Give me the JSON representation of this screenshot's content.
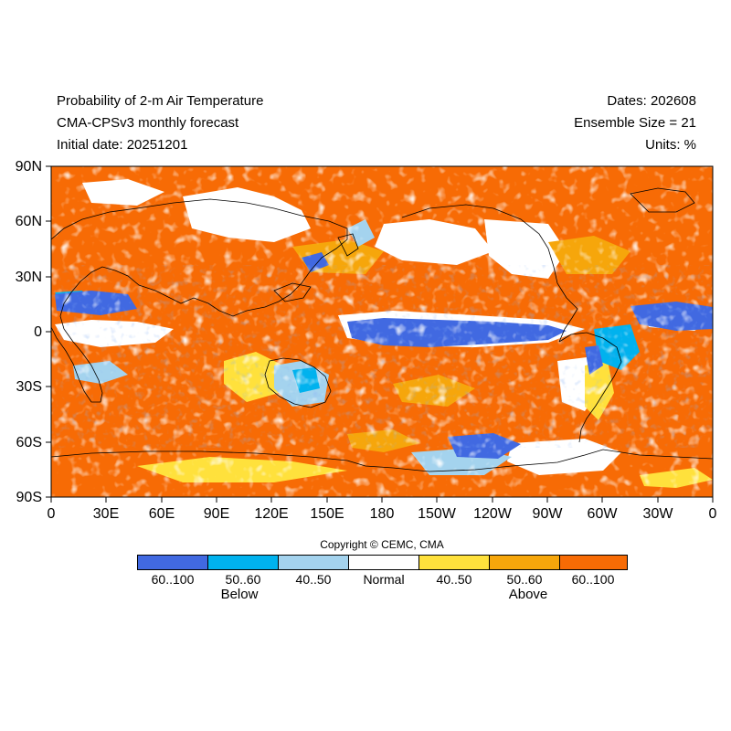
{
  "header": {
    "title": "Probability of 2-m Air Temperature",
    "model": "CMA-CPSv3 monthly forecast",
    "initial_date": "Initial date: 20251201",
    "dates": "Dates: 202608",
    "ensemble": "Ensemble Size = 21",
    "units": "Units: %"
  },
  "map": {
    "projection": "cylindrical equidistant",
    "lon_range": [
      0,
      360
    ],
    "lat_range": [
      -90,
      90
    ],
    "y_axis_labels": [
      "90N",
      "60N",
      "30N",
      "0",
      "30S",
      "60S",
      "90S"
    ],
    "x_axis_labels": [
      "0",
      "30E",
      "60E",
      "90E",
      "120E",
      "150E",
      "180",
      "150W",
      "120W",
      "90W",
      "60W",
      "30W",
      "0"
    ],
    "dominant_category": "Above 60..100",
    "below_normal_regions": [
      "central and eastern equatorial Pacific",
      "tropical eastern Atlantic",
      "western Indian Ocean",
      "Southern Ocean south of the Pacific",
      "interior Australia"
    ]
  },
  "colorbar": {
    "labels": [
      "60..100",
      "50..60",
      "40..50",
      "Normal",
      "40..50",
      "50..60",
      "60..100"
    ],
    "colors": [
      "#4169e1",
      "#00b2ee",
      "#a4d3ee",
      "#ffffff",
      "#ffe13c",
      "#f6a60b",
      "#f76b05"
    ],
    "below_label": "Below",
    "above_label": "Above"
  },
  "copyright": "Copyright © CEMC, CMA"
}
